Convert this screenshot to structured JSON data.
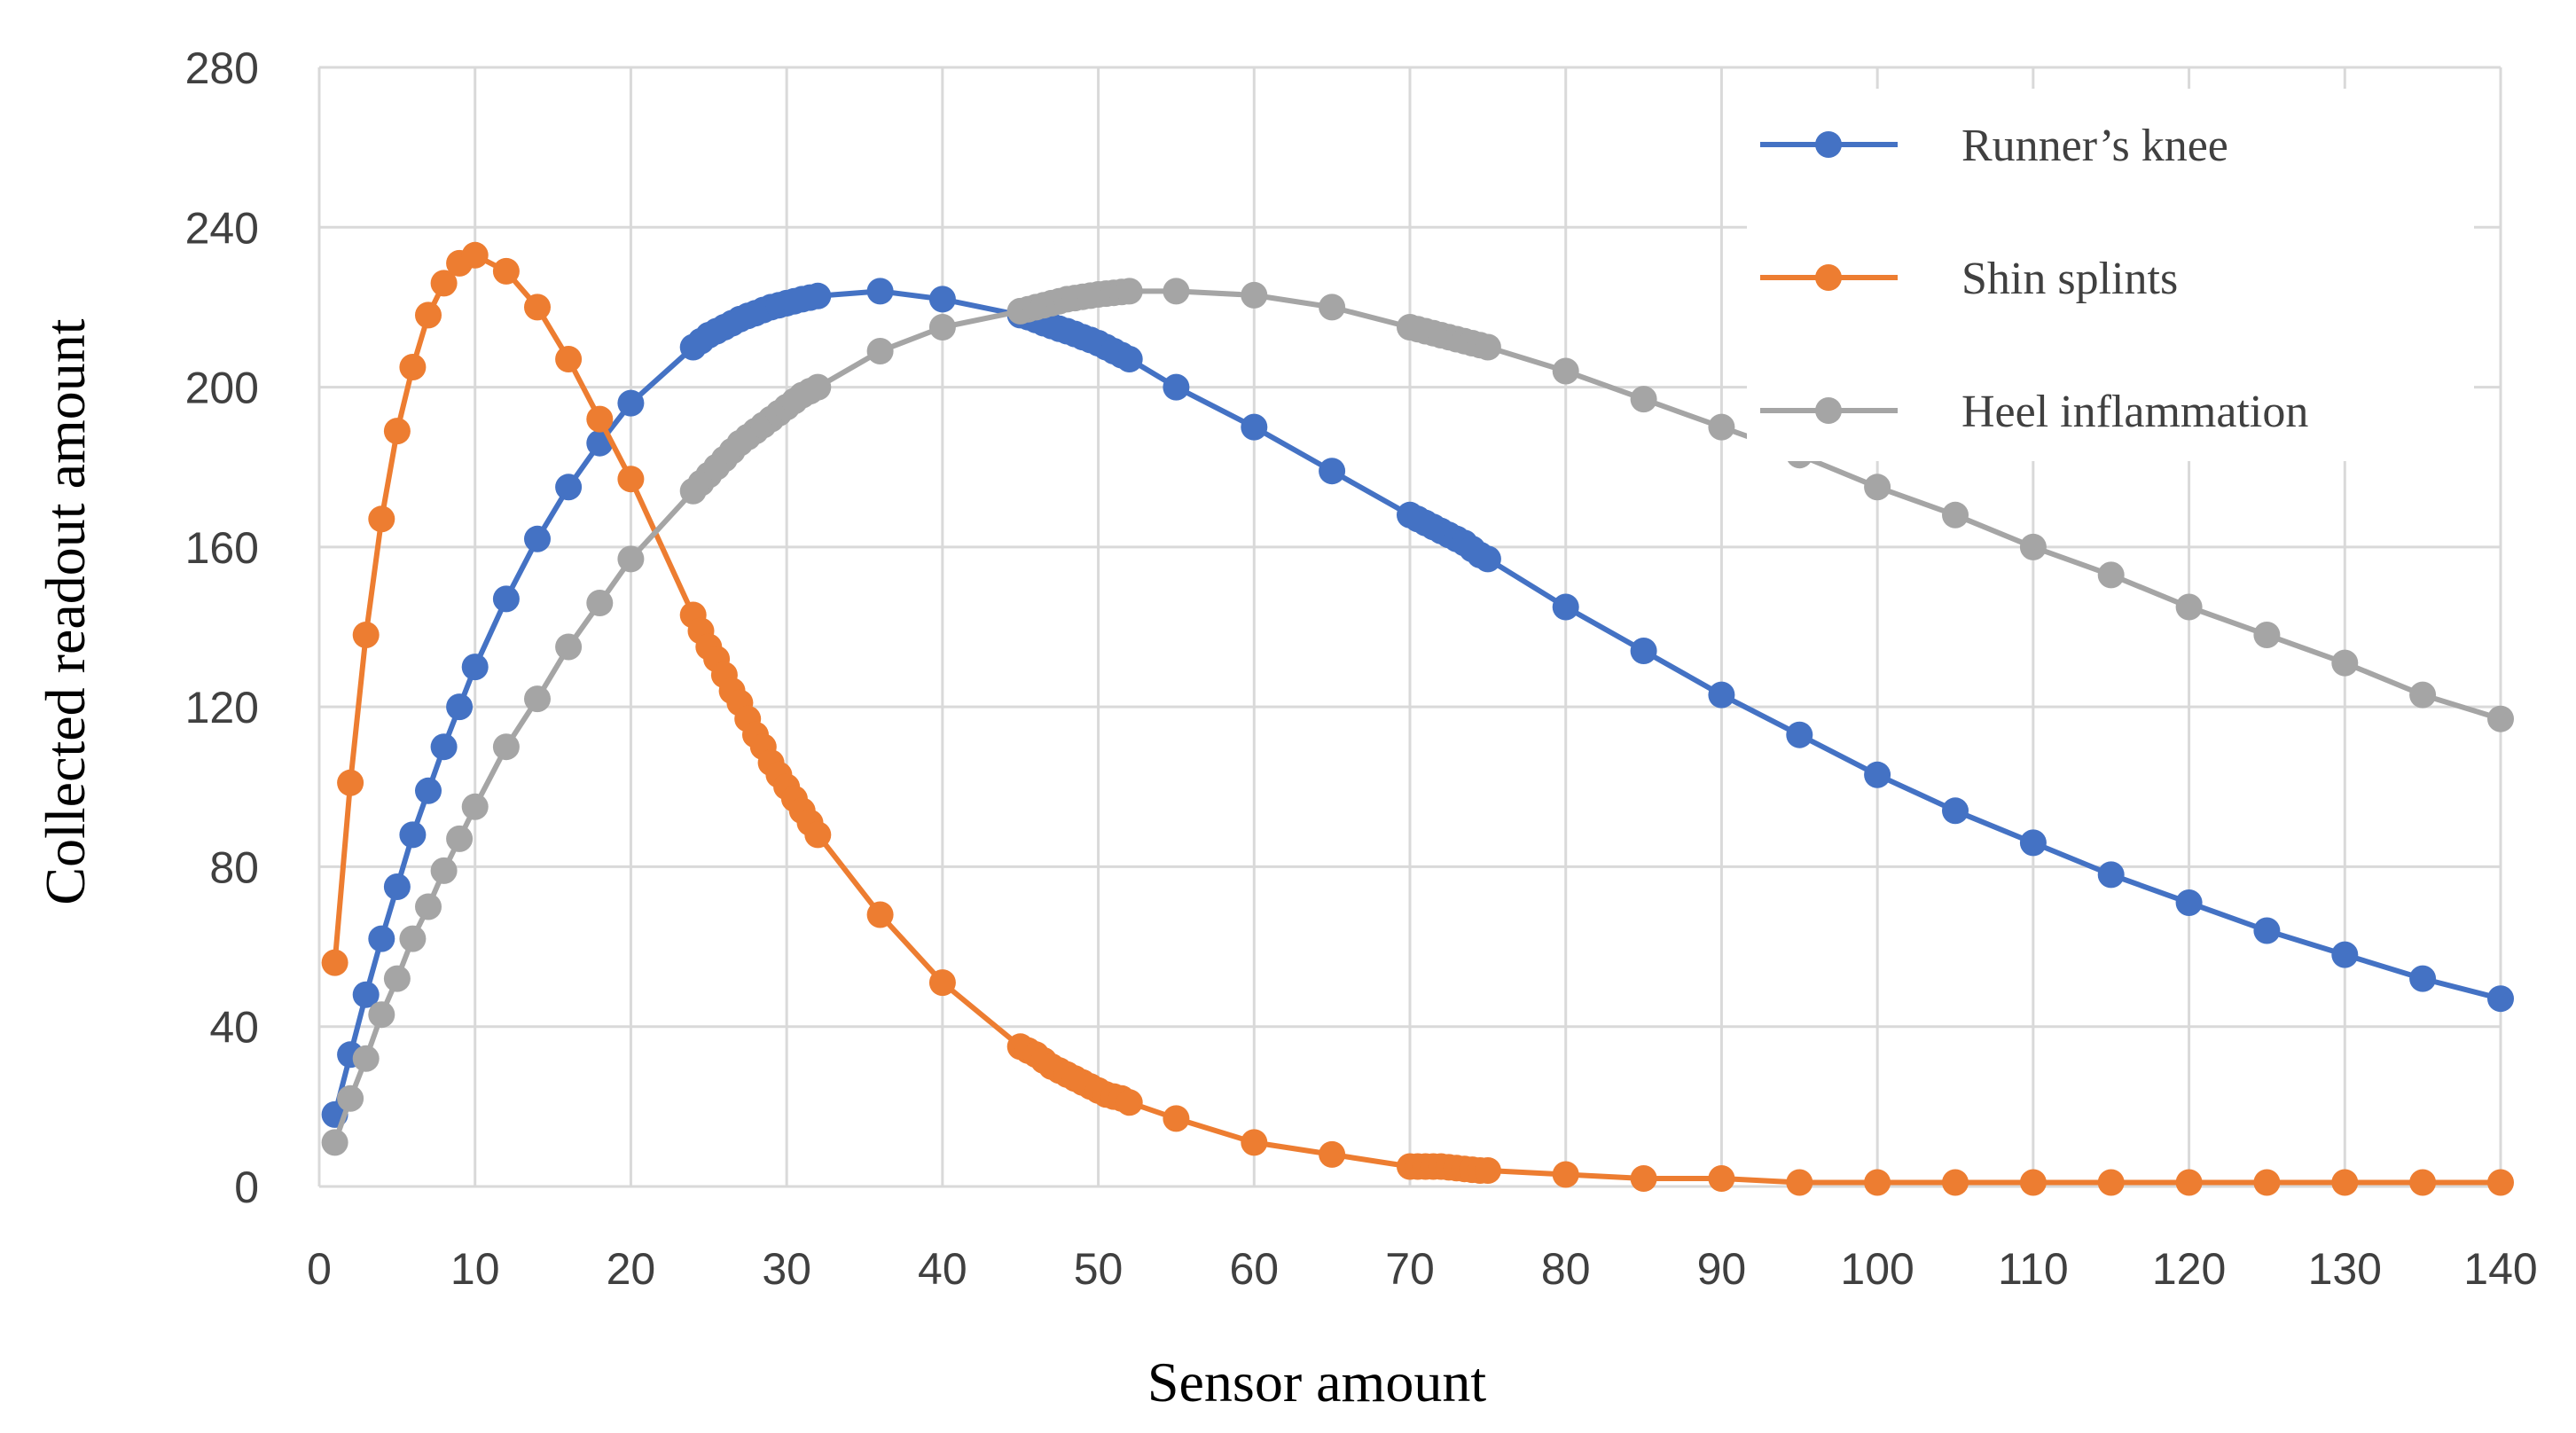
{
  "chart_data": {
    "type": "line",
    "title": "",
    "xlabel": "Sensor amount",
    "ylabel": "Collected readout amount",
    "xlim": [
      0,
      140
    ],
    "ylim": [
      0,
      280
    ],
    "xticks": [
      0,
      10,
      20,
      30,
      40,
      50,
      60,
      70,
      80,
      90,
      100,
      110,
      120,
      130,
      140
    ],
    "yticks": [
      0,
      40,
      80,
      120,
      160,
      200,
      240,
      280
    ],
    "grid": true,
    "legend_position": "top-right",
    "series": [
      {
        "name": "Runner’s knee",
        "color": "#4472c4",
        "x": [
          1,
          2,
          3,
          4,
          5,
          6,
          7,
          8,
          9,
          10,
          12,
          14,
          16,
          18,
          20,
          24,
          24.5,
          25,
          25.5,
          26,
          26.5,
          27,
          27.5,
          28,
          28.5,
          29,
          29.5,
          30,
          30.5,
          31,
          31.5,
          32,
          36,
          40,
          45,
          45.5,
          46,
          46.5,
          47,
          47.5,
          48,
          48.5,
          49,
          49.5,
          50,
          50.5,
          51,
          51.5,
          52,
          55,
          60,
          65,
          70,
          70.5,
          71,
          71.5,
          72,
          72.5,
          73,
          73.5,
          74,
          74.5,
          75,
          80,
          85,
          90,
          95,
          100,
          105,
          110,
          115,
          120,
          125,
          130,
          135,
          140
        ],
        "y": [
          18,
          33,
          48,
          62,
          75,
          88,
          99,
          110,
          120,
          130,
          147,
          162,
          175,
          186,
          196,
          210,
          211.5,
          213,
          214,
          215,
          216,
          217,
          217.8,
          218.5,
          219.3,
          220,
          220.5,
          221,
          221.5,
          222,
          222.4,
          222.8,
          224,
          222,
          218,
          217.5,
          216.8,
          216,
          215.3,
          214.6,
          214,
          213.3,
          212.5,
          211.8,
          211,
          210,
          209,
          208,
          207,
          200,
          190,
          179,
          168,
          167,
          166,
          165,
          164,
          163,
          162,
          161,
          159.5,
          158,
          157,
          145,
          134,
          123,
          113,
          103,
          94,
          86,
          78,
          71,
          64,
          58,
          52,
          47
        ]
      },
      {
        "name": "Shin splints",
        "color": "#ed7d31",
        "x": [
          1,
          2,
          3,
          4,
          5,
          6,
          7,
          8,
          9,
          10,
          12,
          14,
          16,
          18,
          20,
          24,
          24.5,
          25,
          25.5,
          26,
          26.5,
          27,
          27.5,
          28,
          28.5,
          29,
          29.5,
          30,
          30.5,
          31,
          31.5,
          32,
          36,
          40,
          45,
          45.5,
          46,
          46.5,
          47,
          47.5,
          48,
          48.5,
          49,
          49.5,
          50,
          50.5,
          51,
          51.5,
          52,
          55,
          60,
          65,
          70,
          70.5,
          71,
          71.5,
          72,
          72.5,
          73,
          73.5,
          74,
          74.5,
          75,
          80,
          85,
          90,
          95,
          100,
          105,
          110,
          115,
          120,
          125,
          130,
          135,
          140
        ],
        "y": [
          56,
          101,
          138,
          167,
          189,
          205,
          218,
          226,
          231,
          233,
          229,
          220,
          207,
          192,
          177,
          143,
          139,
          135,
          132,
          128,
          124,
          121,
          117,
          113,
          110,
          106,
          103,
          100,
          97,
          94,
          91,
          88,
          68,
          51,
          35,
          34,
          33,
          31.5,
          30,
          29,
          28,
          27,
          26,
          25,
          24,
          23,
          22.5,
          22,
          21,
          17,
          11,
          8,
          5,
          5,
          5,
          5,
          5,
          4.8,
          4.6,
          4.4,
          4.2,
          4,
          4,
          3,
          2,
          2,
          1,
          1,
          1,
          1,
          1,
          1,
          1,
          1,
          1,
          1
        ]
      },
      {
        "name": "Heel inflammation",
        "color": "#a5a5a5",
        "x": [
          1,
          2,
          3,
          4,
          5,
          6,
          7,
          8,
          9,
          10,
          12,
          14,
          16,
          18,
          20,
          24,
          24.5,
          25,
          25.5,
          26,
          26.5,
          27,
          27.5,
          28,
          28.5,
          29,
          29.5,
          30,
          30.5,
          31,
          31.5,
          32,
          36,
          40,
          45,
          45.5,
          46,
          46.5,
          47,
          47.5,
          48,
          48.5,
          49,
          49.5,
          50,
          50.5,
          51,
          51.5,
          52,
          55,
          60,
          65,
          70,
          70.5,
          71,
          71.5,
          72,
          72.5,
          73,
          73.5,
          74,
          74.5,
          75,
          80,
          85,
          90,
          95,
          100,
          105,
          110,
          115,
          120,
          125,
          130,
          135,
          140
        ],
        "y": [
          11,
          22,
          32,
          43,
          52,
          62,
          70,
          79,
          87,
          95,
          110,
          122,
          135,
          146,
          157,
          174,
          176,
          178,
          180,
          182,
          184,
          186,
          187.5,
          189,
          190.5,
          192,
          193.5,
          195,
          196.5,
          198,
          199,
          200,
          209,
          215,
          219,
          219.5,
          220,
          220.5,
          221,
          221.5,
          222,
          222.3,
          222.6,
          222.9,
          223.2,
          223.4,
          223.6,
          223.8,
          224,
          224,
          223,
          220,
          215,
          214.5,
          214,
          213.5,
          213,
          212.5,
          212,
          211.5,
          211,
          210.5,
          210,
          204,
          197,
          190,
          183,
          175,
          168,
          160,
          153,
          145,
          138,
          131,
          123,
          117
        ]
      }
    ]
  }
}
